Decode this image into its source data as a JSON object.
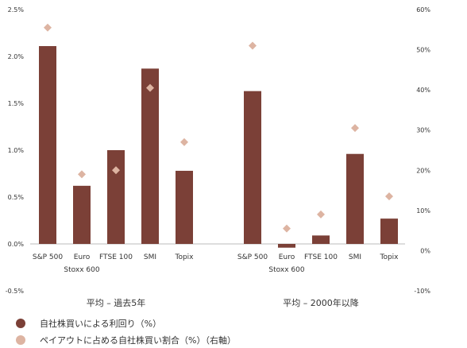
{
  "chart_data": {
    "type": "bar",
    "title": "",
    "group_labels": [
      "平均 – 過去5年",
      "平均 – 2000年以降"
    ],
    "groups": [
      {
        "name": "平均 – 過去5年",
        "categories": [
          [
            "S&P 500"
          ],
          [
            "Euro",
            "Stoxx 600"
          ],
          [
            "FTSE 100"
          ],
          [
            "SMI"
          ],
          [
            "Topix"
          ]
        ],
        "bar_values": [
          2.11,
          0.62,
          1.0,
          1.87,
          0.78
        ],
        "diamond_values": [
          55.5,
          19.0,
          20.0,
          40.5,
          27.0
        ]
      },
      {
        "name": "平均 – 2000年以降",
        "categories": [
          [
            "S&P 500"
          ],
          [
            "Euro",
            "Stoxx 600"
          ],
          [
            "FTSE 100"
          ],
          [
            "SMI"
          ],
          [
            "Topix"
          ]
        ],
        "bar_values": [
          1.63,
          -0.04,
          0.09,
          0.96,
          0.27
        ],
        "diamond_values": [
          51.0,
          5.5,
          9.0,
          30.5,
          13.5
        ]
      }
    ],
    "series": [
      {
        "name": "自社株買いによる利回り（%）",
        "kind": "bar",
        "axis": "left",
        "color": "#7b4037"
      },
      {
        "name": "ペイアウトに占める自社株買い割合（%）（右軸）",
        "kind": "diamond",
        "axis": "right",
        "color": "#ddb4a2"
      }
    ],
    "left_axis": {
      "ylim": [
        -0.5,
        2.5
      ],
      "ticks": [
        2.5,
        2.0,
        1.5,
        1.0,
        0.5,
        0.0,
        -0.5
      ],
      "tick_labels": [
        "2.5%",
        "2.0%",
        "1.5%",
        "1.0%",
        "0.5%",
        "0.0%",
        "-0.5%"
      ]
    },
    "right_axis": {
      "ylim": [
        -10,
        60
      ],
      "ticks": [
        60,
        50,
        40,
        30,
        20,
        10,
        0,
        -10
      ],
      "tick_labels": [
        "60%",
        "50%",
        "40%",
        "30%",
        "20%",
        "10%",
        "0%",
        "-10%"
      ]
    },
    "grid": false,
    "legend_position": "bottom-left"
  },
  "legend": [
    {
      "label": "自社株買いによる利回り（%）",
      "color": "#7b4037"
    },
    {
      "label": "ペイアウトに占める自社株買い割合（%）（右軸）",
      "color": "#ddb4a2"
    }
  ]
}
